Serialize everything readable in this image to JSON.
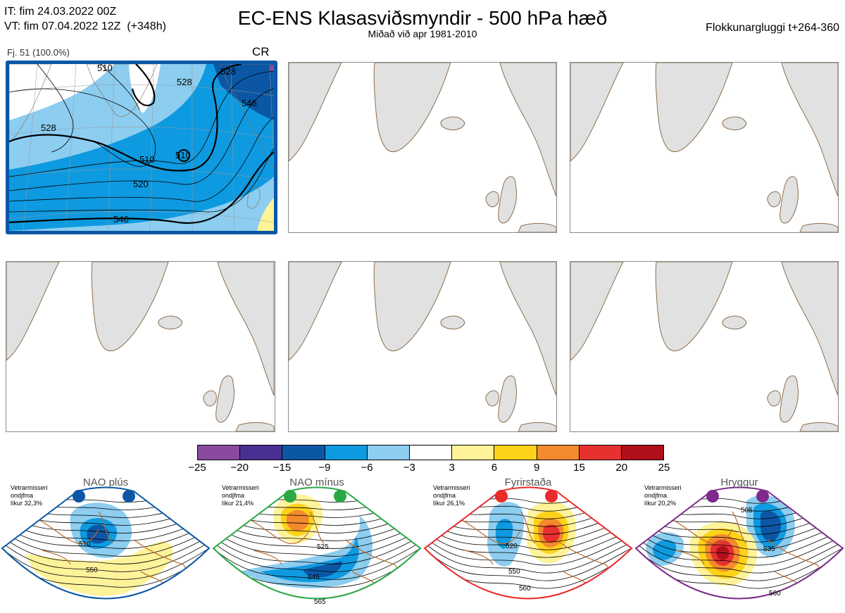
{
  "header": {
    "it_line": "IT: fim 24.03.2022 00Z",
    "vt_line": "VT: fim 07.04.2022 12Z  (+348h)",
    "title": "EC-ENS Klasasviðsmyndir - 500 hPa hæð",
    "subtitle": "Miðað við apr 1981-2010",
    "window": "Flokkunargluggi t+264-360"
  },
  "cluster": {
    "label": "Fj. 51 (100.0%)",
    "code": "CR",
    "contour_labels": [
      "510",
      "528",
      "510",
      "520",
      "528",
      "510",
      "546",
      "528",
      "546"
    ]
  },
  "colors": {
    "selected_border": "#0b57a6",
    "land": "#e1e1e1",
    "coast": "#8c6e4f",
    "regime_coast": "#b86a2e"
  },
  "colorbar": {
    "colors": [
      "#8a4a9e",
      "#4a2f92",
      "#0b57a6",
      "#0e9ae0",
      "#8ccdf0",
      "#ffffff",
      "#fff39a",
      "#ffd21a",
      "#f38a2e",
      "#e83030",
      "#b0101a"
    ],
    "ticks": [
      "−25",
      "−20",
      "−15",
      "−9",
      "−6",
      "−3",
      "3",
      "6",
      "9",
      "15",
      "20",
      "25"
    ]
  },
  "regimes": [
    {
      "name": "NAO plús",
      "season": "Vetrarmisseri",
      "months": "ondjfma",
      "probability": "líkur 32,3%",
      "color": "#0b57a6",
      "contours": [
        "510",
        "550"
      ]
    },
    {
      "name": "NAO mínus",
      "season": "Vetrarmisseri",
      "months": "ondjfma",
      "probability": "líkur 21,4%",
      "color": "#2aa845",
      "contours": [
        "525",
        "545",
        "565"
      ]
    },
    {
      "name": "Fyrirstaða",
      "season": "Vetrarmisseri",
      "months": "ondjfma",
      "probability": "líkur 26,1%",
      "color": "#e82a2a",
      "contours": [
        "520",
        "550",
        "560"
      ]
    },
    {
      "name": "Hryggur",
      "season": "Vetrarmisseri",
      "months": "ondjfma",
      "probability": "líkur 20,2%",
      "color": "#7d2a8c",
      "contours": [
        "505",
        "535",
        "560"
      ]
    }
  ]
}
